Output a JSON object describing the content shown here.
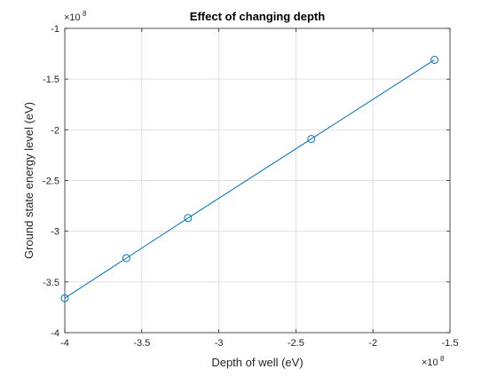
{
  "chart_data": {
    "type": "line",
    "title": "Effect of changing depth",
    "xlabel": "Depth of well (eV)",
    "ylabel": "Ground state energy level (eV)",
    "x_exponent_label": "×10",
    "x_exponent": "8",
    "y_exponent_label": "×10",
    "y_exponent": "8",
    "xlim": [
      -4.0,
      -1.5
    ],
    "ylim": [
      -4.0,
      -1.0
    ],
    "x_ticks": [
      -4.0,
      -3.5,
      -3.0,
      -2.5,
      -2.0,
      -1.5
    ],
    "x_tick_labels": [
      "-4",
      "-3.5",
      "-3",
      "-2.5",
      "-2",
      "-1.5"
    ],
    "y_ticks": [
      -4.0,
      -3.5,
      -3.0,
      -2.5,
      -2.0,
      -1.5,
      -1.0
    ],
    "y_tick_labels": [
      "-4",
      "-3.5",
      "-3",
      "-2.5",
      "-2",
      "-1.5",
      "-1"
    ],
    "grid": true,
    "series": [
      {
        "marker": "circle",
        "color": "#0072BD",
        "x": [
          -4.0,
          -3.6,
          -3.2,
          -2.4,
          -1.6
        ],
        "y": [
          -3.66,
          -3.265,
          -2.87,
          -2.09,
          -1.31
        ]
      }
    ]
  }
}
